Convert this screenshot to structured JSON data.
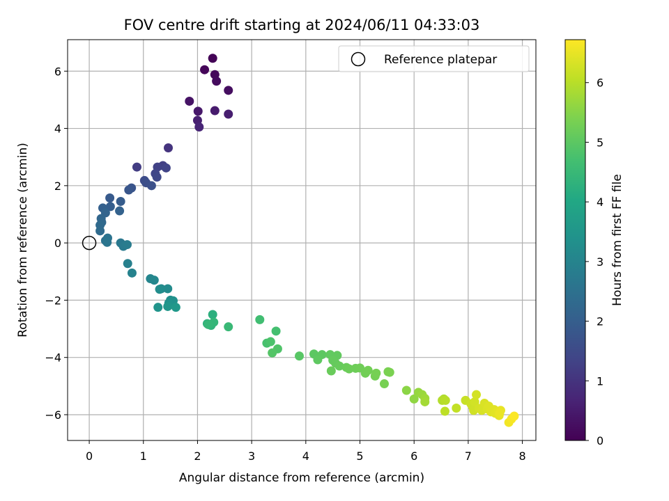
{
  "chart_data": {
    "type": "scatter",
    "title": "FOV centre drift starting at 2024/06/11 04:33:03",
    "xlabel": "Angular distance from reference (arcmin)",
    "ylabel": "Rotation from reference (arcmin)",
    "xlim": [
      -0.4,
      8.25
    ],
    "ylim": [
      -6.9,
      7.1
    ],
    "xticks": [
      0,
      1,
      2,
      3,
      4,
      5,
      6,
      7,
      8
    ],
    "yticks": [
      -6,
      -4,
      -2,
      0,
      2,
      4,
      6
    ],
    "xtick_labels": [
      "0",
      "1",
      "2",
      "3",
      "4",
      "5",
      "6",
      "7",
      "8"
    ],
    "ytick_labels": [
      "−6",
      "−4",
      "−2",
      "0",
      "2",
      "4",
      "6"
    ],
    "grid": true,
    "colormap": "viridis",
    "colorbar": {
      "label": "Hours from first FF file",
      "range": [
        0,
        6.72
      ],
      "ticks": [
        0,
        1,
        2,
        3,
        4,
        5,
        6
      ],
      "tick_labels": [
        "0",
        "1",
        "2",
        "3",
        "4",
        "5",
        "6"
      ]
    },
    "legend": {
      "placement": "top-right",
      "entries": [
        {
          "label": "Reference platepar",
          "marker": "open-circle"
        }
      ]
    },
    "reference_point": {
      "x": 0,
      "y": 0
    },
    "series": [
      {
        "points": [
          [
            2.28,
            6.45,
            0.05
          ],
          [
            2.13,
            6.05,
            0.1
          ],
          [
            2.32,
            5.88,
            0.15
          ],
          [
            2.35,
            5.65,
            0.2
          ],
          [
            2.57,
            5.33,
            0.25
          ],
          [
            1.85,
            4.95,
            0.35
          ],
          [
            2.01,
            4.6,
            0.45
          ],
          [
            2.32,
            4.62,
            0.5
          ],
          [
            2.57,
            4.5,
            0.55
          ],
          [
            2.0,
            4.28,
            0.6
          ],
          [
            2.03,
            4.05,
            0.7
          ],
          [
            1.46,
            3.32,
            1.0
          ],
          [
            0.88,
            2.65,
            1.2
          ],
          [
            1.36,
            2.7,
            1.25
          ],
          [
            1.26,
            2.65,
            1.3
          ],
          [
            1.42,
            2.62,
            1.35
          ],
          [
            1.22,
            2.42,
            1.4
          ],
          [
            1.25,
            2.3,
            1.45
          ],
          [
            1.02,
            2.18,
            1.55
          ],
          [
            1.05,
            2.1,
            1.6
          ],
          [
            1.15,
            2.0,
            1.65
          ],
          [
            0.78,
            1.92,
            1.75
          ],
          [
            0.73,
            1.85,
            1.8
          ],
          [
            0.38,
            1.57,
            1.9
          ],
          [
            0.58,
            1.45,
            1.95
          ],
          [
            0.39,
            1.27,
            2.0
          ],
          [
            0.25,
            1.22,
            2.05
          ],
          [
            0.56,
            1.12,
            2.1
          ],
          [
            0.3,
            1.05,
            2.15
          ],
          [
            0.22,
            0.85,
            2.2
          ],
          [
            0.23,
            0.72,
            2.25
          ],
          [
            0.2,
            0.62,
            2.3
          ],
          [
            0.2,
            0.42,
            2.35
          ],
          [
            0.3,
            0.08,
            2.5
          ],
          [
            0.34,
            0.17,
            2.55
          ],
          [
            0.33,
            0.02,
            2.6
          ],
          [
            0.58,
            0.0,
            2.7
          ],
          [
            0.63,
            -0.12,
            2.75
          ],
          [
            0.7,
            -0.06,
            2.8
          ],
          [
            0.71,
            -0.72,
            2.9
          ],
          [
            0.79,
            -1.05,
            2.95
          ],
          [
            1.13,
            -1.25,
            3.05
          ],
          [
            1.2,
            -1.3,
            3.1
          ],
          [
            1.33,
            -1.6,
            3.15
          ],
          [
            1.45,
            -1.6,
            3.2
          ],
          [
            1.3,
            -1.62,
            3.25
          ],
          [
            1.5,
            -2.0,
            3.3
          ],
          [
            1.55,
            -2.02,
            3.35
          ],
          [
            1.47,
            -2.1,
            3.4
          ],
          [
            1.27,
            -2.25,
            3.45
          ],
          [
            1.45,
            -2.22,
            3.5
          ],
          [
            1.6,
            -2.25,
            3.55
          ],
          [
            2.28,
            -2.5,
            4.25
          ],
          [
            2.18,
            -2.82,
            4.3
          ],
          [
            2.25,
            -2.88,
            4.35
          ],
          [
            2.3,
            -2.77,
            4.4
          ],
          [
            2.2,
            -2.85,
            4.45
          ],
          [
            2.57,
            -2.93,
            4.5
          ],
          [
            3.15,
            -2.68,
            4.65
          ],
          [
            3.45,
            -3.08,
            4.7
          ],
          [
            3.28,
            -3.5,
            4.75
          ],
          [
            3.35,
            -3.45,
            4.8
          ],
          [
            3.48,
            -3.7,
            4.85
          ],
          [
            3.38,
            -3.84,
            4.9
          ],
          [
            3.88,
            -3.95,
            4.95
          ],
          [
            4.15,
            -3.88,
            5.0
          ],
          [
            4.3,
            -3.9,
            5.02
          ],
          [
            4.22,
            -4.08,
            5.04
          ],
          [
            4.45,
            -3.9,
            5.06
          ],
          [
            4.58,
            -3.93,
            5.08
          ],
          [
            4.5,
            -4.1,
            5.1
          ],
          [
            4.55,
            -4.2,
            5.12
          ],
          [
            4.62,
            -4.3,
            5.14
          ],
          [
            4.47,
            -4.47,
            5.16
          ],
          [
            4.75,
            -4.35,
            5.18
          ],
          [
            4.8,
            -4.4,
            5.2
          ],
          [
            4.92,
            -4.38,
            5.22
          ],
          [
            5.0,
            -4.37,
            5.24
          ],
          [
            5.1,
            -4.55,
            5.26
          ],
          [
            5.15,
            -4.45,
            5.28
          ],
          [
            5.28,
            -4.65,
            5.3
          ],
          [
            5.3,
            -4.55,
            5.32
          ],
          [
            5.45,
            -4.92,
            5.34
          ],
          [
            5.52,
            -4.5,
            5.36
          ],
          [
            5.55,
            -4.52,
            5.38
          ],
          [
            5.86,
            -5.15,
            5.55
          ],
          [
            6.0,
            -5.45,
            5.6
          ],
          [
            6.08,
            -5.22,
            5.65
          ],
          [
            6.15,
            -5.3,
            5.7
          ],
          [
            6.2,
            -5.43,
            5.75
          ],
          [
            6.2,
            -5.55,
            5.8
          ],
          [
            6.55,
            -5.45,
            5.9
          ],
          [
            6.52,
            -5.5,
            5.95
          ],
          [
            6.58,
            -5.5,
            6.0
          ],
          [
            6.57,
            -5.88,
            6.05
          ],
          [
            6.78,
            -5.77,
            6.1
          ],
          [
            6.95,
            -5.5,
            6.15
          ],
          [
            7.05,
            -5.62,
            6.2
          ],
          [
            7.08,
            -5.72,
            6.22
          ],
          [
            7.1,
            -5.85,
            6.24
          ],
          [
            7.12,
            -5.55,
            6.26
          ],
          [
            7.15,
            -5.3,
            6.28
          ],
          [
            7.2,
            -5.78,
            6.3
          ],
          [
            7.25,
            -5.85,
            6.32
          ],
          [
            7.3,
            -5.6,
            6.34
          ],
          [
            7.35,
            -5.8,
            6.36
          ],
          [
            7.38,
            -5.7,
            6.38
          ],
          [
            7.42,
            -5.9,
            6.4
          ],
          [
            7.48,
            -5.82,
            6.42
          ],
          [
            7.5,
            -5.95,
            6.44
          ],
          [
            7.55,
            -5.88,
            6.46
          ],
          [
            7.57,
            -6.03,
            6.48
          ],
          [
            7.6,
            -5.85,
            6.5
          ],
          [
            7.58,
            -5.95,
            6.52
          ],
          [
            7.75,
            -6.27,
            6.6
          ],
          [
            7.8,
            -6.15,
            6.65
          ],
          [
            7.85,
            -6.05,
            6.7
          ]
        ]
      }
    ]
  }
}
